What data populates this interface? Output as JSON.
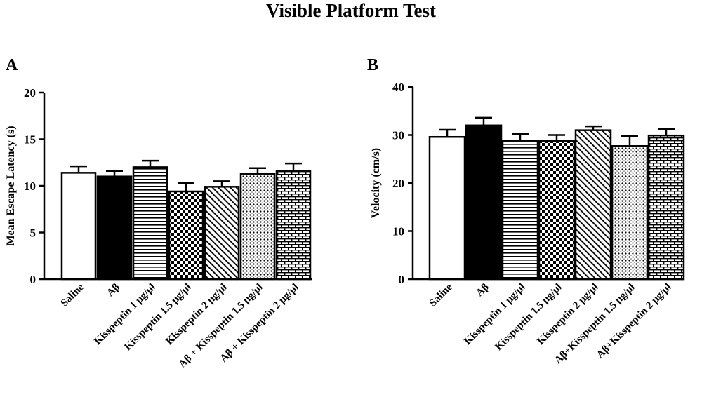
{
  "figure": {
    "title": "Visible Platform Test"
  },
  "chart_data": [
    {
      "panel_label": "A",
      "type": "bar",
      "title": "",
      "xlabel": "",
      "ylabel": "Mean Escape Latency (s)",
      "ylim": [
        0,
        20
      ],
      "yticks": [
        0,
        5,
        10,
        15,
        20
      ],
      "grid": false,
      "categories": [
        "Saline",
        "Aβ",
        "Kisspeptin 1 μg/μl",
        "Kisspeptin 1.5 μg/μl",
        "Kisspeptin 2 μg/μl",
        "Aβ + Kisspeptin 1.5 μg/μl",
        "Aβ + Kisspeptin 2 μg/μl"
      ],
      "values": [
        11.4,
        11.0,
        12.0,
        9.4,
        9.9,
        11.3,
        11.6
      ],
      "errors": [
        0.7,
        0.6,
        0.7,
        0.9,
        0.6,
        0.6,
        0.8
      ],
      "fills": [
        "white",
        "black",
        "horizontal-lines",
        "checker",
        "diagonal",
        "dots",
        "brick"
      ]
    },
    {
      "panel_label": "B",
      "type": "bar",
      "title": "",
      "xlabel": "",
      "ylabel": "Velocity (cm/s)",
      "ylim": [
        0,
        40
      ],
      "yticks": [
        0,
        10,
        20,
        30,
        40
      ],
      "grid": false,
      "categories": [
        "Saline",
        "Aβ",
        "Kisspeptin 1 μg/μl",
        "Kisspeptin 1.5 μg/μl",
        "Kisspeptin 2 μg/μl",
        "Aβ+Kisspeptin 1.5 μg/μl",
        "Aβ+Kisspeptin 2 μg/μl"
      ],
      "values": [
        29.6,
        32.0,
        28.8,
        28.8,
        31.0,
        27.7,
        29.9
      ],
      "errors": [
        1.5,
        1.6,
        1.4,
        1.2,
        0.8,
        2.1,
        1.3
      ],
      "fills": [
        "white",
        "black",
        "horizontal-lines",
        "checker",
        "diagonal",
        "dots",
        "brick"
      ]
    }
  ]
}
